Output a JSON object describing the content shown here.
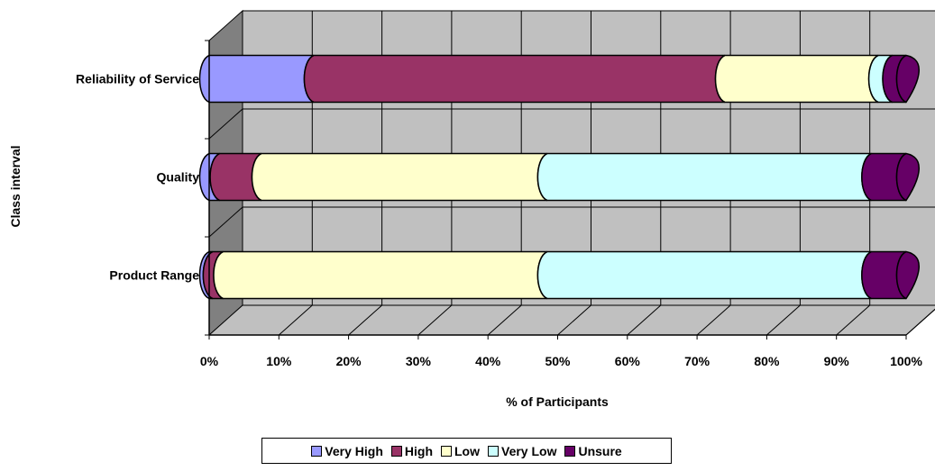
{
  "chart_data": {
    "type": "bar",
    "orientation": "horizontal",
    "stacked": "100%",
    "style": "3d-cylinder",
    "categories": [
      "Reliability of Service",
      "Quality",
      "Product Range"
    ],
    "series": [
      {
        "name": "Very High",
        "color": "#9999ff",
        "values": [
          15,
          1.5,
          0.5
        ]
      },
      {
        "name": "High",
        "color": "#993366",
        "values": [
          59,
          6,
          1.5
        ]
      },
      {
        "name": "Low",
        "color": "#ffffcc",
        "values": [
          22,
          41,
          46.5
        ]
      },
      {
        "name": "Very Low",
        "color": "#ccffff",
        "values": [
          2,
          46.5,
          46.5
        ]
      },
      {
        "name": "Unsure",
        "color": "#660066",
        "values": [
          2,
          5,
          5
        ]
      }
    ],
    "xlabel": "% of Participants",
    "ylabel": "Class interval",
    "xlim": [
      0,
      100
    ],
    "xticks": [
      "0%",
      "10%",
      "20%",
      "30%",
      "40%",
      "50%",
      "60%",
      "70%",
      "80%",
      "90%",
      "100%"
    ],
    "grid": true,
    "wall_color": "#c0c0c0",
    "side_wall_color": "#808080",
    "legend_position": "bottom"
  }
}
